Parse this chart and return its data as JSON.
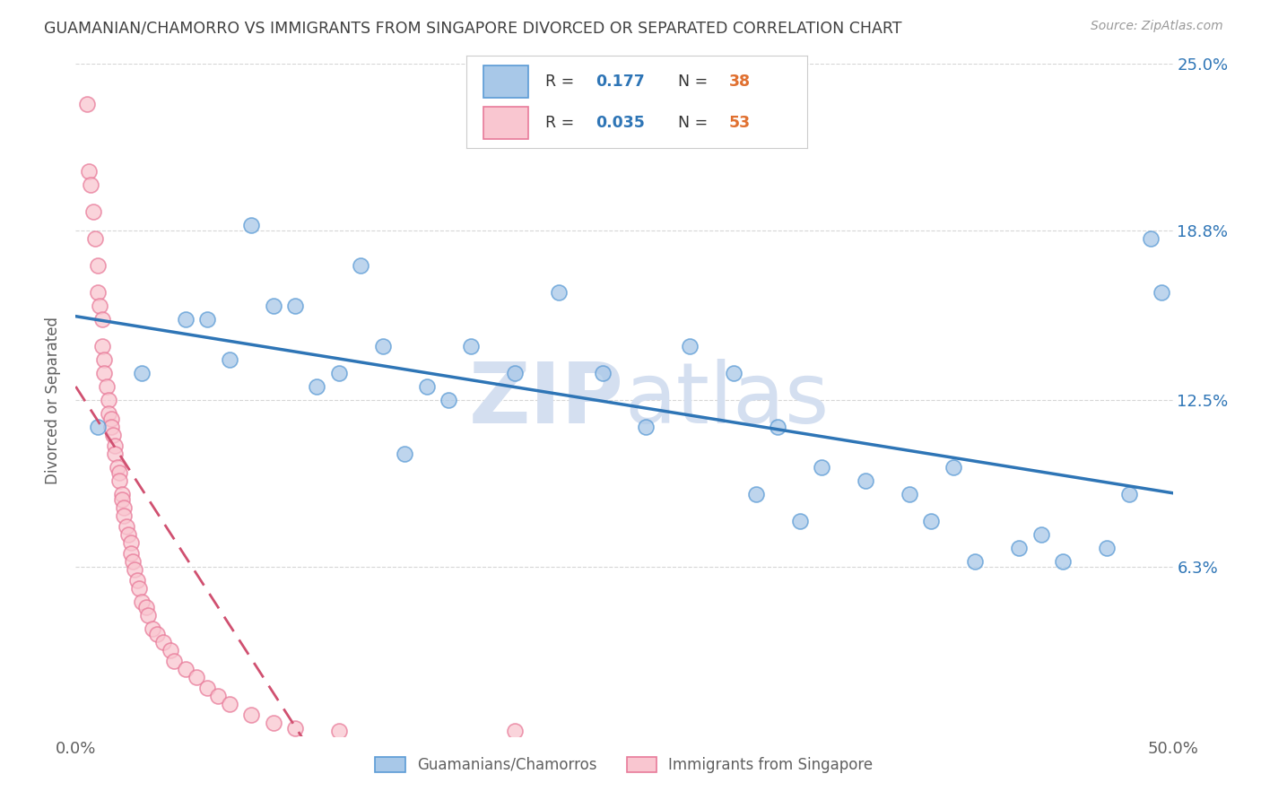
{
  "title": "GUAMANIAN/CHAMORRO VS IMMIGRANTS FROM SINGAPORE DIVORCED OR SEPARATED CORRELATION CHART",
  "source": "Source: ZipAtlas.com",
  "ylabel": "Divorced or Separated",
  "xlim": [
    0.0,
    0.5
  ],
  "ylim": [
    0.0,
    0.25
  ],
  "xtick_labels": [
    "0.0%",
    "50.0%"
  ],
  "ytick_labels": [
    "6.3%",
    "12.5%",
    "18.8%",
    "25.0%"
  ],
  "ytick_values": [
    0.063,
    0.125,
    0.188,
    0.25
  ],
  "xtick_values": [
    0.0,
    0.5
  ],
  "series1_label": "Guamanians/Chamorros",
  "series1_R": "0.177",
  "series1_N": "38",
  "series1_color": "#a8c8e8",
  "series1_edge_color": "#5b9bd5",
  "series1_line_color": "#2e75b6",
  "series2_label": "Immigrants from Singapore",
  "series2_R": "0.035",
  "series2_N": "53",
  "series2_color": "#f9c6d0",
  "series2_edge_color": "#e87a99",
  "series2_line_color": "#d05070",
  "legend_text_color": "#2e75b6",
  "N_text_color": "#e07030",
  "watermark_color": "#d4dff0",
  "background_color": "#ffffff",
  "grid_color": "#cccccc",
  "title_color": "#404040",
  "axis_label_color": "#606060",
  "right_tick_color": "#2e75b6",
  "series1_x": [
    0.01,
    0.03,
    0.05,
    0.06,
    0.07,
    0.08,
    0.09,
    0.1,
    0.11,
    0.12,
    0.13,
    0.14,
    0.15,
    0.16,
    0.17,
    0.18,
    0.2,
    0.22,
    0.24,
    0.26,
    0.28,
    0.3,
    0.31,
    0.32,
    0.33,
    0.34,
    0.36,
    0.38,
    0.39,
    0.4,
    0.41,
    0.43,
    0.44,
    0.45,
    0.47,
    0.48,
    0.49,
    0.495
  ],
  "series1_y": [
    0.115,
    0.135,
    0.155,
    0.155,
    0.14,
    0.19,
    0.16,
    0.16,
    0.13,
    0.135,
    0.175,
    0.145,
    0.105,
    0.13,
    0.125,
    0.145,
    0.135,
    0.165,
    0.135,
    0.115,
    0.145,
    0.135,
    0.09,
    0.115,
    0.08,
    0.1,
    0.095,
    0.09,
    0.08,
    0.1,
    0.065,
    0.07,
    0.075,
    0.065,
    0.07,
    0.09,
    0.185,
    0.165
  ],
  "series2_x": [
    0.005,
    0.006,
    0.007,
    0.008,
    0.009,
    0.01,
    0.01,
    0.011,
    0.012,
    0.012,
    0.013,
    0.013,
    0.014,
    0.015,
    0.015,
    0.016,
    0.016,
    0.017,
    0.018,
    0.018,
    0.019,
    0.02,
    0.02,
    0.021,
    0.021,
    0.022,
    0.022,
    0.023,
    0.024,
    0.025,
    0.025,
    0.026,
    0.027,
    0.028,
    0.029,
    0.03,
    0.032,
    0.033,
    0.035,
    0.037,
    0.04,
    0.043,
    0.045,
    0.05,
    0.055,
    0.06,
    0.065,
    0.07,
    0.08,
    0.09,
    0.1,
    0.12,
    0.2
  ],
  "series2_y": [
    0.235,
    0.21,
    0.205,
    0.195,
    0.185,
    0.175,
    0.165,
    0.16,
    0.155,
    0.145,
    0.14,
    0.135,
    0.13,
    0.125,
    0.12,
    0.118,
    0.115,
    0.112,
    0.108,
    0.105,
    0.1,
    0.098,
    0.095,
    0.09,
    0.088,
    0.085,
    0.082,
    0.078,
    0.075,
    0.072,
    0.068,
    0.065,
    0.062,
    0.058,
    0.055,
    0.05,
    0.048,
    0.045,
    0.04,
    0.038,
    0.035,
    0.032,
    0.028,
    0.025,
    0.022,
    0.018,
    0.015,
    0.012,
    0.008,
    0.005,
    0.003,
    0.002,
    0.002
  ]
}
